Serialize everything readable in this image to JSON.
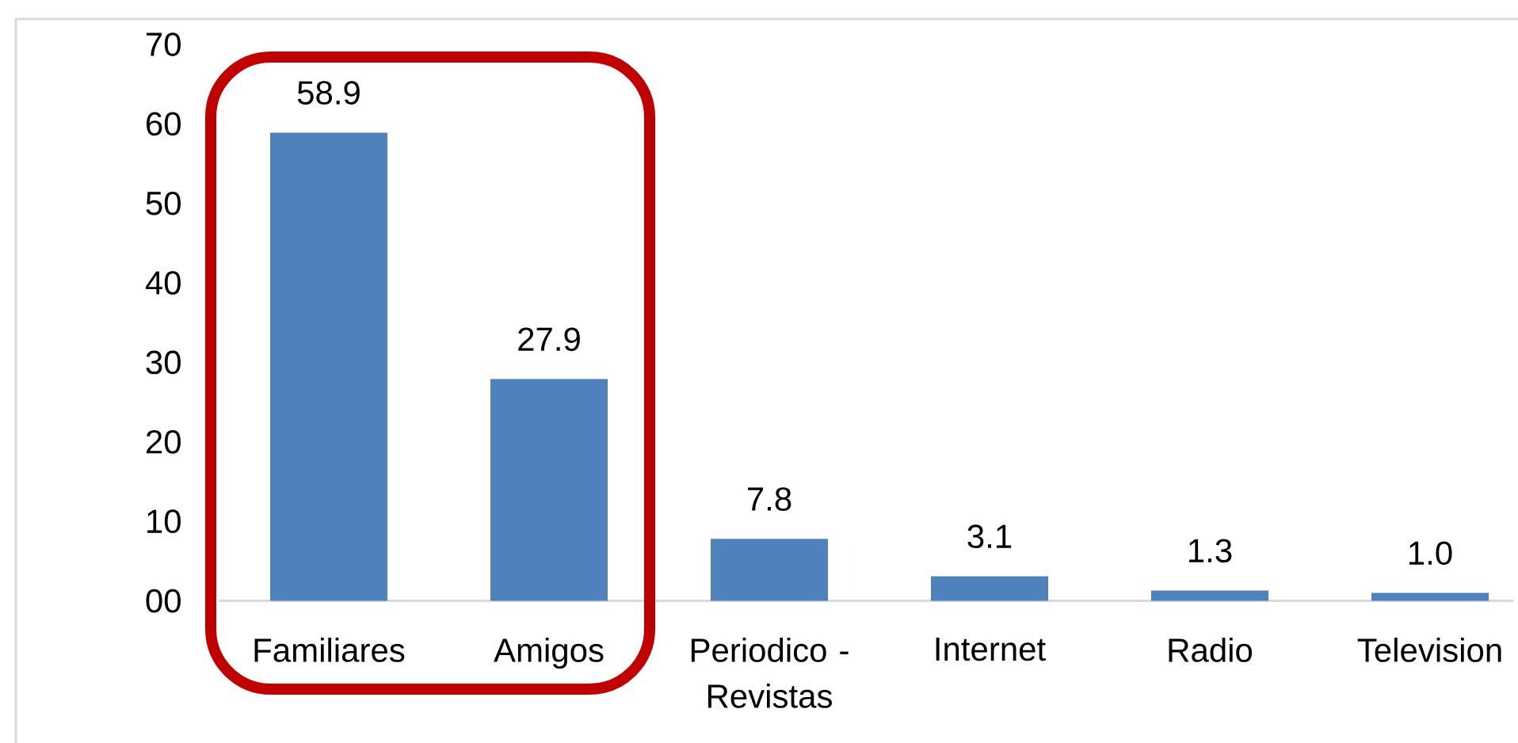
{
  "chart_data": {
    "type": "bar",
    "categories": [
      "Familiares",
      "Amigos",
      "Periodico - Revistas",
      "Internet",
      "Radio",
      "Television"
    ],
    "values": [
      58.9,
      27.9,
      7.8,
      3.1,
      1.3,
      1.0
    ],
    "value_labels": [
      "58.9",
      "27.9",
      "7.8",
      "3.1",
      "1.3",
      "1.0"
    ],
    "color": "#4f81bd",
    "ylim": [
      0,
      70
    ],
    "yticks": [
      {
        "value": 0,
        "label": "00"
      },
      10,
      20,
      30,
      40,
      50,
      60,
      70
    ]
  }
}
